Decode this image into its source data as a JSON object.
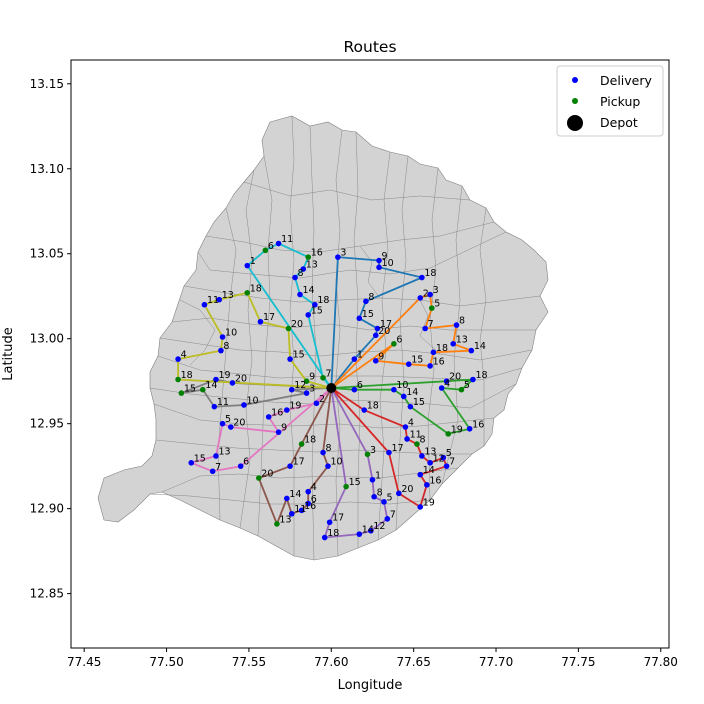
{
  "chart_data": {
    "type": "scatter",
    "title": "Routes",
    "xlabel": "Longitude",
    "ylabel": "Latitude",
    "xlim": [
      77.442,
      77.805
    ],
    "ylim": [
      12.818,
      13.164
    ],
    "xticks": [
      "77.45",
      "77.50",
      "77.55",
      "77.60",
      "77.65",
      "77.70",
      "77.75",
      "77.80"
    ],
    "xtick_values": [
      77.45,
      77.5,
      77.55,
      77.6,
      77.65,
      77.7,
      77.75,
      77.8
    ],
    "yticks": [
      "12.85",
      "12.90",
      "12.95",
      "13.00",
      "13.05",
      "13.10",
      "13.15"
    ],
    "ytick_values": [
      12.85,
      12.9,
      12.95,
      13.0,
      13.05,
      13.1,
      13.15
    ],
    "grid": false,
    "legend_position": "top-right",
    "legend": [
      {
        "label": "Delivery",
        "marker": "small-dot",
        "color": "#0000ff"
      },
      {
        "label": "Pickup",
        "marker": "small-dot",
        "color": "#008000"
      },
      {
        "label": "Depot",
        "marker": "large-dot",
        "color": "#000000"
      }
    ],
    "map_fill": "#d3d3d3",
    "map_edge": "#808080",
    "depot": {
      "x": 77.6,
      "y": 12.971
    },
    "routes": [
      {
        "color": "#1f77b4",
        "stops": [
          {
            "label": "3",
            "x": 77.604,
            "y": 13.048,
            "kind": "Delivery"
          },
          {
            "label": "9",
            "x": 77.629,
            "y": 13.046,
            "kind": "Delivery"
          },
          {
            "label": "10",
            "x": 77.629,
            "y": 13.042,
            "kind": "Delivery"
          },
          {
            "label": "18",
            "x": 77.655,
            "y": 13.036,
            "kind": "Delivery"
          },
          {
            "label": "8",
            "x": 77.621,
            "y": 13.022,
            "kind": "Delivery"
          },
          {
            "label": "15",
            "x": 77.617,
            "y": 13.012,
            "kind": "Delivery"
          },
          {
            "label": "17",
            "x": 77.628,
            "y": 13.006,
            "kind": "Delivery"
          },
          {
            "label": "20",
            "x": 77.627,
            "y": 13.002,
            "kind": "Delivery"
          },
          {
            "label": "1",
            "x": 77.614,
            "y": 12.988,
            "kind": "Delivery"
          }
        ]
      },
      {
        "color": "#ff7f0e",
        "stops": [
          {
            "label": "2",
            "x": 77.654,
            "y": 13.024,
            "kind": "Delivery"
          },
          {
            "label": "3",
            "x": 77.66,
            "y": 13.026,
            "kind": "Delivery"
          },
          {
            "label": "5",
            "x": 77.661,
            "y": 13.018,
            "kind": "Pickup"
          },
          {
            "label": "7",
            "x": 77.657,
            "y": 13.006,
            "kind": "Delivery"
          },
          {
            "label": "8",
            "x": 77.676,
            "y": 13.008,
            "kind": "Delivery"
          },
          {
            "label": "13",
            "x": 77.674,
            "y": 12.997,
            "kind": "Delivery"
          },
          {
            "label": "14",
            "x": 77.685,
            "y": 12.993,
            "kind": "Delivery"
          },
          {
            "label": "18",
            "x": 77.662,
            "y": 12.992,
            "kind": "Delivery"
          },
          {
            "label": "16",
            "x": 77.66,
            "y": 12.984,
            "kind": "Delivery"
          },
          {
            "label": "15",
            "x": 77.647,
            "y": 12.985,
            "kind": "Delivery"
          },
          {
            "label": "9",
            "x": 77.627,
            "y": 12.987,
            "kind": "Delivery"
          },
          {
            "label": "6",
            "x": 77.638,
            "y": 12.997,
            "kind": "Pickup"
          }
        ]
      },
      {
        "color": "#2ca02c",
        "stops": [
          {
            "label": "20",
            "x": 77.67,
            "y": 12.975,
            "kind": "Delivery"
          },
          {
            "label": "18",
            "x": 77.686,
            "y": 12.976,
            "kind": "Delivery"
          },
          {
            "label": "5",
            "x": 77.679,
            "y": 12.97,
            "kind": "Pickup"
          },
          {
            "label": "4",
            "x": 77.667,
            "y": 12.971,
            "kind": "Delivery"
          },
          {
            "label": "16",
            "x": 77.684,
            "y": 12.947,
            "kind": "Delivery"
          },
          {
            "label": "19",
            "x": 77.671,
            "y": 12.944,
            "kind": "Pickup"
          },
          {
            "label": "15",
            "x": 77.648,
            "y": 12.96,
            "kind": "Delivery"
          },
          {
            "label": "14",
            "x": 77.644,
            "y": 12.966,
            "kind": "Delivery"
          },
          {
            "label": "10",
            "x": 77.638,
            "y": 12.97,
            "kind": "Delivery"
          },
          {
            "label": "6",
            "x": 77.614,
            "y": 12.97,
            "kind": "Delivery"
          }
        ]
      },
      {
        "color": "#d62728",
        "stops": [
          {
            "label": "18",
            "x": 77.62,
            "y": 12.958,
            "kind": "Delivery"
          },
          {
            "label": "4",
            "x": 77.645,
            "y": 12.948,
            "kind": "Delivery"
          },
          {
            "label": "11",
            "x": 77.646,
            "y": 12.941,
            "kind": "Delivery"
          },
          {
            "label": "8",
            "x": 77.652,
            "y": 12.938,
            "kind": "Pickup"
          },
          {
            "label": "13",
            "x": 77.655,
            "y": 12.931,
            "kind": "Delivery"
          },
          {
            "label": "12",
            "x": 77.66,
            "y": 12.927,
            "kind": "Delivery"
          },
          {
            "label": "5",
            "x": 77.668,
            "y": 12.93,
            "kind": "Delivery"
          },
          {
            "label": "7",
            "x": 77.67,
            "y": 12.925,
            "kind": "Delivery"
          },
          {
            "label": "14",
            "x": 77.654,
            "y": 12.92,
            "kind": "Delivery"
          },
          {
            "label": "16",
            "x": 77.658,
            "y": 12.914,
            "kind": "Delivery"
          },
          {
            "label": "19",
            "x": 77.654,
            "y": 12.901,
            "kind": "Delivery"
          },
          {
            "label": "20",
            "x": 77.641,
            "y": 12.909,
            "kind": "Delivery"
          },
          {
            "label": "17",
            "x": 77.635,
            "y": 12.933,
            "kind": "Delivery"
          }
        ]
      },
      {
        "color": "#9467bd",
        "stops": [
          {
            "label": "3",
            "x": 77.622,
            "y": 12.932,
            "kind": "Pickup"
          },
          {
            "label": "1",
            "x": 77.625,
            "y": 12.917,
            "kind": "Delivery"
          },
          {
            "label": "8",
            "x": 77.626,
            "y": 12.907,
            "kind": "Delivery"
          },
          {
            "label": "5",
            "x": 77.632,
            "y": 12.904,
            "kind": "Delivery"
          },
          {
            "label": "7",
            "x": 77.634,
            "y": 12.894,
            "kind": "Delivery"
          },
          {
            "label": "12",
            "x": 77.624,
            "y": 12.887,
            "kind": "Delivery"
          },
          {
            "label": "14",
            "x": 77.617,
            "y": 12.885,
            "kind": "Delivery"
          },
          {
            "label": "18",
            "x": 77.596,
            "y": 12.883,
            "kind": "Delivery"
          },
          {
            "label": "17",
            "x": 77.599,
            "y": 12.892,
            "kind": "Delivery"
          },
          {
            "label": "15",
            "x": 77.609,
            "y": 12.913,
            "kind": "Pickup"
          }
        ]
      },
      {
        "color": "#8c564b",
        "stops": [
          {
            "label": "8",
            "x": 77.595,
            "y": 12.933,
            "kind": "Delivery"
          },
          {
            "label": "10",
            "x": 77.598,
            "y": 12.925,
            "kind": "Delivery"
          },
          {
            "label": "4",
            "x": 77.586,
            "y": 12.91,
            "kind": "Delivery"
          },
          {
            "label": "6",
            "x": 77.586,
            "y": 12.903,
            "kind": "Delivery"
          },
          {
            "label": "16",
            "x": 77.582,
            "y": 12.899,
            "kind": "Delivery"
          },
          {
            "label": "11",
            "x": 77.576,
            "y": 12.897,
            "kind": "Delivery"
          },
          {
            "label": "14",
            "x": 77.573,
            "y": 12.906,
            "kind": "Delivery"
          },
          {
            "label": "13",
            "x": 77.567,
            "y": 12.891,
            "kind": "Pickup"
          },
          {
            "label": "20",
            "x": 77.556,
            "y": 12.918,
            "kind": "Pickup"
          },
          {
            "label": "17",
            "x": 77.575,
            "y": 12.925,
            "kind": "Delivery"
          },
          {
            "label": "18",
            "x": 77.582,
            "y": 12.938,
            "kind": "Pickup"
          }
        ]
      },
      {
        "color": "#e377c2",
        "stops": [
          {
            "label": "2",
            "x": 77.591,
            "y": 12.962,
            "kind": "Delivery"
          },
          {
            "label": "19",
            "x": 77.573,
            "y": 12.958,
            "kind": "Delivery"
          },
          {
            "label": "16",
            "x": 77.562,
            "y": 12.954,
            "kind": "Delivery"
          },
          {
            "label": "9",
            "x": 77.568,
            "y": 12.945,
            "kind": "Delivery"
          },
          {
            "label": "20",
            "x": 77.539,
            "y": 12.948,
            "kind": "Delivery"
          },
          {
            "label": "5",
            "x": 77.534,
            "y": 12.95,
            "kind": "Delivery"
          },
          {
            "label": "13",
            "x": 77.53,
            "y": 12.931,
            "kind": "Delivery"
          },
          {
            "label": "15",
            "x": 77.515,
            "y": 12.927,
            "kind": "Delivery"
          },
          {
            "label": "7",
            "x": 77.528,
            "y": 12.922,
            "kind": "Delivery"
          },
          {
            "label": "6",
            "x": 77.545,
            "y": 12.925,
            "kind": "Delivery"
          }
        ]
      },
      {
        "color": "#7f7f7f",
        "stops": [
          {
            "label": "12",
            "x": 77.576,
            "y": 12.97,
            "kind": "Delivery"
          },
          {
            "label": "3",
            "x": 77.585,
            "y": 12.968,
            "kind": "Delivery"
          },
          {
            "label": "10",
            "x": 77.547,
            "y": 12.961,
            "kind": "Delivery"
          },
          {
            "label": "11",
            "x": 77.529,
            "y": 12.96,
            "kind": "Delivery"
          },
          {
            "label": "14",
            "x": 77.522,
            "y": 12.97,
            "kind": "Pickup"
          },
          {
            "label": "15",
            "x": 77.509,
            "y": 12.968,
            "kind": "Pickup"
          },
          {
            "label": "19",
            "x": 77.53,
            "y": 12.976,
            "kind": "Delivery"
          },
          {
            "label": "20",
            "x": 77.54,
            "y": 12.974,
            "kind": "Delivery"
          }
        ]
      },
      {
        "color": "#bcbd22",
        "stops": [
          {
            "label": "9",
            "x": 77.585,
            "y": 12.975,
            "kind": "Pickup"
          },
          {
            "label": "15",
            "x": 77.575,
            "y": 12.988,
            "kind": "Delivery"
          },
          {
            "label": "20",
            "x": 77.574,
            "y": 13.006,
            "kind": "Pickup"
          },
          {
            "label": "17",
            "x": 77.557,
            "y": 13.01,
            "kind": "Delivery"
          },
          {
            "label": "18",
            "x": 77.549,
            "y": 13.027,
            "kind": "Pickup"
          },
          {
            "label": "13",
            "x": 77.532,
            "y": 13.023,
            "kind": "Delivery"
          },
          {
            "label": "11",
            "x": 77.523,
            "y": 13.02,
            "kind": "Delivery"
          },
          {
            "label": "10",
            "x": 77.534,
            "y": 13.001,
            "kind": "Delivery"
          },
          {
            "label": "8",
            "x": 77.533,
            "y": 12.993,
            "kind": "Delivery"
          },
          {
            "label": "4",
            "x": 77.507,
            "y": 12.988,
            "kind": "Delivery"
          },
          {
            "label": "18",
            "x": 77.507,
            "y": 12.976,
            "kind": "Pickup"
          }
        ]
      },
      {
        "color": "#17becf",
        "stops": [
          {
            "label": "7",
            "x": 77.595,
            "y": 12.977,
            "kind": "Pickup"
          },
          {
            "label": "15",
            "x": 77.586,
            "y": 13.014,
            "kind": "Delivery"
          },
          {
            "label": "18",
            "x": 77.59,
            "y": 13.02,
            "kind": "Delivery"
          },
          {
            "label": "14",
            "x": 77.581,
            "y": 13.026,
            "kind": "Delivery"
          },
          {
            "label": "8",
            "x": 77.578,
            "y": 13.036,
            "kind": "Delivery"
          },
          {
            "label": "13",
            "x": 77.583,
            "y": 13.041,
            "kind": "Delivery"
          },
          {
            "label": "16",
            "x": 77.586,
            "y": 13.048,
            "kind": "Pickup"
          },
          {
            "label": "11",
            "x": 77.568,
            "y": 13.056,
            "kind": "Delivery"
          },
          {
            "label": "6",
            "x": 77.56,
            "y": 13.052,
            "kind": "Pickup"
          },
          {
            "label": "1",
            "x": 77.549,
            "y": 13.043,
            "kind": "Delivery"
          }
        ]
      }
    ]
  }
}
